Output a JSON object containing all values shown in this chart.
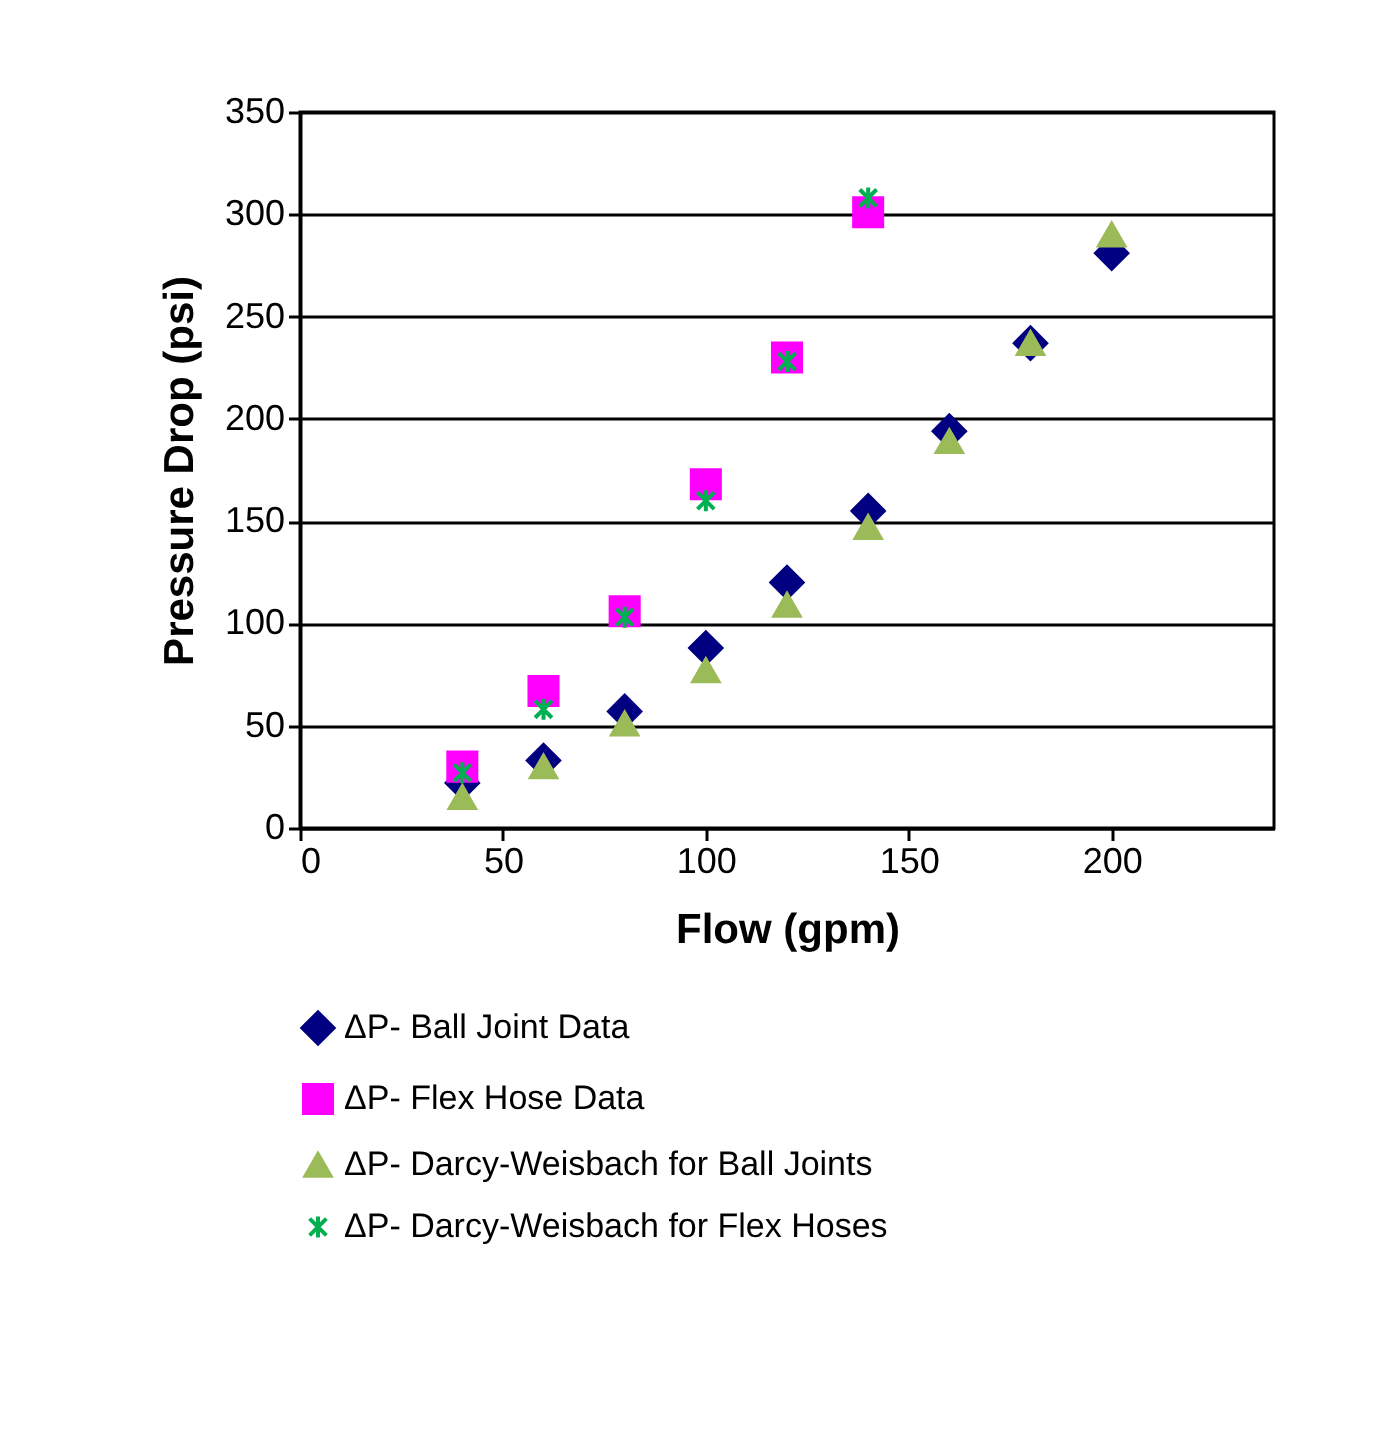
{
  "chart_data": {
    "type": "scatter",
    "xlabel": "Flow (gpm)",
    "ylabel": "Pressure Drop (psi)",
    "xlim": [
      0,
      240
    ],
    "xticks": [
      0,
      50,
      100,
      150,
      200
    ],
    "ylim": [
      0,
      350
    ],
    "yticks": [
      0,
      50,
      100,
      150,
      200,
      250,
      300,
      350
    ],
    "grid": "y",
    "legend": "bottom",
    "series": [
      {
        "name": "ΔP- Ball Joint Data",
        "color": "#000080",
        "marker": "diamond",
        "x": [
          40,
          60,
          80,
          100,
          120,
          140,
          160,
          180,
          200
        ],
        "values": [
          22,
          33,
          57,
          88,
          120,
          155,
          194,
          237,
          281
        ]
      },
      {
        "name": "ΔP- Flex Hose Data",
        "color": "#ff00ff",
        "marker": "square",
        "x": [
          40,
          60,
          80,
          100,
          120,
          140
        ],
        "values": [
          30,
          67,
          106,
          168,
          230,
          301
        ]
      },
      {
        "name": "ΔP-  Darcy-Weisbach for Ball Joints",
        "color": "#9bbb59",
        "marker": "triangle",
        "x": [
          40,
          60,
          80,
          100,
          120,
          140,
          160,
          180,
          200
        ],
        "values": [
          15,
          30,
          51,
          77,
          109,
          147,
          189,
          237,
          290
        ]
      },
      {
        "name": "ΔP- Darcy-Weisbach for Flex Hoses",
        "color": "#00b050",
        "marker": "cross",
        "x": [
          40,
          60,
          80,
          100,
          120,
          140
        ],
        "values": [
          27,
          58,
          103,
          160,
          228,
          308
        ]
      }
    ]
  }
}
